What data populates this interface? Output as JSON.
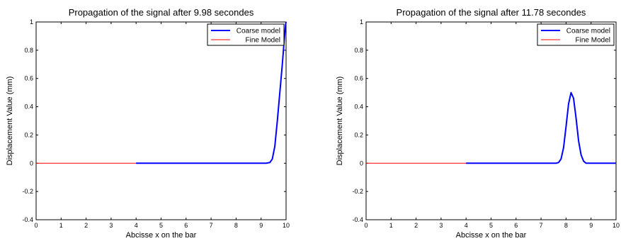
{
  "chart_data": [
    {
      "type": "line",
      "title": "Propagation of the signal after 9.98 secondes",
      "xlabel": "Abcisse x on the bar",
      "ylabel": "Displacement Value (mm)",
      "xlim": [
        0,
        10
      ],
      "ylim": [
        -0.4,
        1
      ],
      "xticks": [
        0,
        1,
        2,
        3,
        4,
        5,
        6,
        7,
        8,
        9,
        10
      ],
      "yticks": [
        -0.4,
        -0.2,
        0,
        0.2,
        0.4,
        0.6,
        0.8,
        1
      ],
      "grid": false,
      "legend_position": "top-right",
      "series": [
        {
          "name": "Coarse model",
          "color": "#0000ff",
          "x": [
            4.0,
            6.0,
            8.0,
            9.2,
            9.35,
            9.45,
            9.55,
            9.65,
            9.75,
            9.85,
            9.93,
            9.98,
            10.0
          ],
          "y": [
            0,
            0,
            0,
            0,
            0.005,
            0.03,
            0.12,
            0.3,
            0.5,
            0.7,
            0.88,
            0.98,
            1.0
          ]
        },
        {
          "name": "Fine Model",
          "color": "#ff0000",
          "x": [
            0,
            1,
            2,
            3,
            4,
            5,
            6
          ],
          "y": [
            0,
            0,
            0,
            0,
            0,
            0,
            0
          ]
        }
      ]
    },
    {
      "type": "line",
      "title": "Propagation of the signal after 11.78 secondes",
      "xlabel": "Abcisse x on the bar",
      "ylabel": "Displacement Value (mm)",
      "xlim": [
        0,
        10
      ],
      "ylim": [
        -0.4,
        1
      ],
      "xticks": [
        0,
        1,
        2,
        3,
        4,
        5,
        6,
        7,
        8,
        9,
        10
      ],
      "yticks": [
        -0.4,
        -0.2,
        0,
        0.2,
        0.4,
        0.6,
        0.8,
        1
      ],
      "grid": false,
      "legend_position": "top-right",
      "series": [
        {
          "name": "Coarse model",
          "color": "#0000ff",
          "x": [
            4.0,
            6.0,
            7.6,
            7.7,
            7.8,
            7.9,
            8.0,
            8.1,
            8.2,
            8.3,
            8.4,
            8.5,
            8.6,
            8.7,
            8.8,
            9.0,
            10.0
          ],
          "y": [
            0,
            0,
            0,
            0.005,
            0.03,
            0.11,
            0.26,
            0.42,
            0.5,
            0.46,
            0.32,
            0.16,
            0.06,
            0.015,
            0,
            0,
            0
          ]
        },
        {
          "name": "Fine Model",
          "color": "#ff0000",
          "x": [
            0,
            1,
            2,
            3,
            4,
            5,
            6
          ],
          "y": [
            0,
            0,
            0,
            0,
            0,
            0,
            0
          ]
        }
      ]
    }
  ]
}
